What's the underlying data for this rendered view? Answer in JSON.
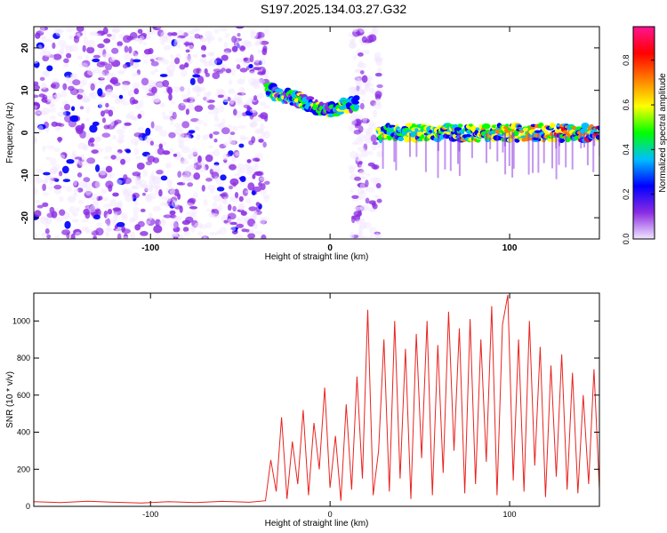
{
  "title": "S197.2025.134.03.27.G32",
  "chart_data": [
    {
      "type": "heatmap",
      "xlabel": "Height of straight line (km)",
      "ylabel": "Frequency (Hz)",
      "xlim": [
        -165,
        150
      ],
      "ylim": [
        -25,
        25
      ],
      "x_ticks": [
        -100,
        0,
        100
      ],
      "y_ticks": [
        -20,
        -10,
        0,
        10,
        20
      ],
      "colorbar": {
        "label": "Normalized spectral amplitude",
        "range": [
          0,
          0.95
        ],
        "ticks": [
          0.0,
          0.2,
          0.4,
          0.6,
          0.8
        ],
        "stops": [
          "#f2e6ff",
          "#8a2be2",
          "#0000ff",
          "#00bfff",
          "#00ff00",
          "#ffff00",
          "#ff8000",
          "#ff0000",
          "#ff1493"
        ]
      },
      "regions": [
        {
          "name": "noise",
          "x": [
            -165,
            -35
          ],
          "freq": [
            -25,
            25
          ],
          "amplitude": [
            0.0,
            0.2
          ]
        },
        {
          "name": "signal-arc",
          "x": [
            -35,
            15
          ],
          "freq_center": [
            10,
            8,
            5,
            7
          ],
          "amplitude": [
            0.1,
            0.6
          ]
        },
        {
          "name": "noise-strip",
          "x": [
            12,
            28
          ],
          "freq": [
            -25,
            25
          ],
          "amplitude": [
            0.0,
            0.15
          ]
        },
        {
          "name": "signal-zero",
          "x": [
            27,
            150
          ],
          "freq_center": 0,
          "amplitude": [
            0.2,
            0.85
          ]
        }
      ]
    },
    {
      "type": "line",
      "xlabel": "Height of straight line (km)",
      "ylabel": "SNR (10 * v/v)",
      "xlim": [
        -165,
        150
      ],
      "ylim": [
        0,
        1150
      ],
      "x_ticks": [
        -100,
        0,
        100
      ],
      "y_ticks": [
        0,
        200,
        400,
        600,
        800,
        1000
      ],
      "series": [
        {
          "color": "#e8231f",
          "x": [
            -165,
            -150,
            -135,
            -120,
            -105,
            -90,
            -75,
            -60,
            -45,
            -36,
            -33,
            -30,
            -27,
            -24,
            -21,
            -18,
            -15,
            -12,
            -9,
            -6,
            -3,
            0,
            3,
            6,
            9,
            12,
            15,
            18,
            21,
            24,
            27,
            30,
            33,
            36,
            39,
            42,
            45,
            48,
            51,
            54,
            57,
            60,
            63,
            66,
            69,
            72,
            75,
            78,
            81,
            84,
            87,
            90,
            93,
            96,
            99,
            102,
            105,
            108,
            111,
            114,
            117,
            120,
            123,
            126,
            129,
            132,
            135,
            138,
            141,
            144,
            147,
            150
          ],
          "y": [
            25,
            20,
            28,
            22,
            18,
            25,
            20,
            27,
            22,
            30,
            250,
            80,
            480,
            40,
            350,
            120,
            520,
            60,
            450,
            200,
            640,
            100,
            380,
            30,
            550,
            90,
            700,
            150,
            1060,
            60,
            300,
            900,
            80,
            1000,
            150,
            850,
            40,
            930,
            260,
            1000,
            60,
            870,
            180,
            1050,
            300,
            960,
            70,
            1010,
            120,
            900,
            240,
            1080,
            60,
            980,
            1140,
            140,
            900,
            80,
            1000,
            220,
            860,
            50,
            760,
            160,
            820,
            90,
            720,
            70,
            600,
            120,
            740,
            90
          ]
        }
      ]
    }
  ]
}
